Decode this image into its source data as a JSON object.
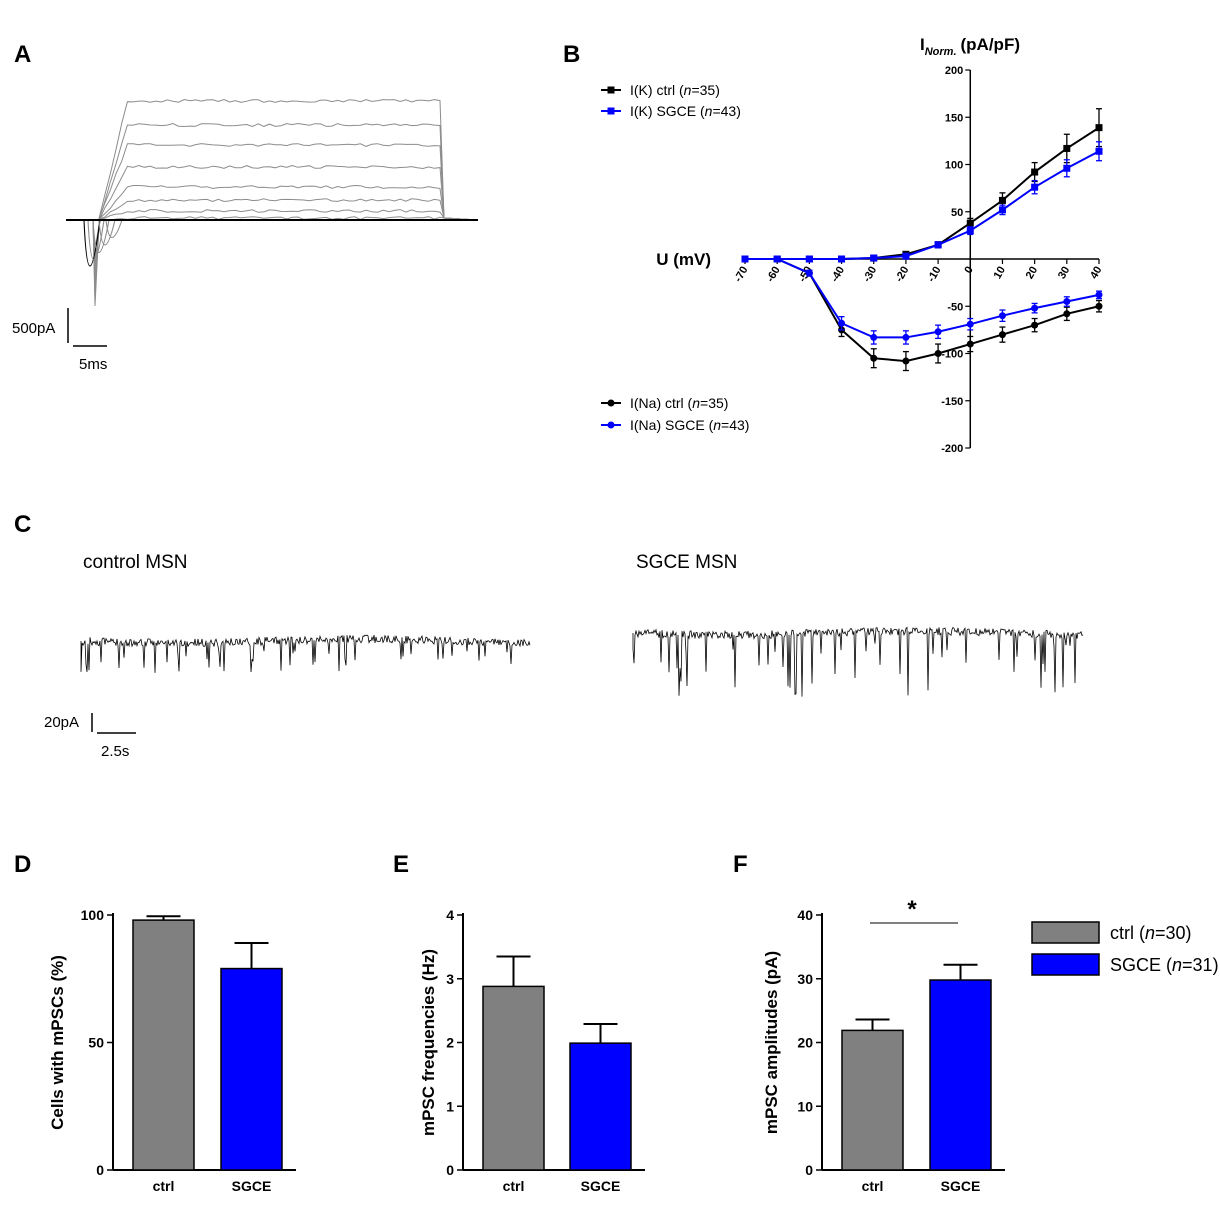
{
  "panels": {
    "a": {
      "letter": "A",
      "scale_current": "500pA",
      "scale_time": "5ms"
    },
    "b": {
      "letter": "B"
    },
    "c": {
      "letter": "C",
      "label_left": "control MSN",
      "label_right": "SGCE MSN",
      "scale_current": "20pA",
      "scale_time": "2.5s"
    },
    "d": {
      "letter": "D"
    },
    "e": {
      "letter": "E"
    },
    "f": {
      "letter": "F"
    }
  },
  "colors": {
    "ctrl_iv": "#000000",
    "sgce": "#0000ff",
    "ctrl_bar": "#808080",
    "trace_grey": "#8c8c8c"
  },
  "chart_data": [
    {
      "id": "B",
      "type": "line",
      "title": "",
      "ylabel_main": "I",
      "ylabel_sub": "Norm.",
      "ylabel_unit": "(pA/pF)",
      "xlabel": "U (mV)",
      "x": [
        -70,
        -60,
        -50,
        -40,
        -30,
        -20,
        -10,
        0,
        10,
        20,
        30,
        40
      ],
      "xlim": [
        -70,
        40
      ],
      "ylim": [
        -200,
        200
      ],
      "yticks": [
        -200,
        -150,
        -100,
        -50,
        50,
        100,
        150,
        200
      ],
      "series": [
        {
          "name": "I(K) ctrl",
          "n": "35",
          "marker": "square",
          "color": "#000000",
          "values": [
            0,
            0,
            0,
            0,
            1,
            5,
            15,
            38,
            62,
            92,
            117,
            139
          ],
          "errors": [
            0,
            0,
            0,
            0,
            1,
            2,
            3,
            5,
            8,
            10,
            15,
            20
          ]
        },
        {
          "name": "I(K) SGCE",
          "n": "43",
          "marker": "square",
          "color": "#0000ff",
          "values": [
            0,
            0,
            0,
            0,
            1,
            3,
            15,
            30,
            52,
            76,
            96,
            114
          ],
          "errors": [
            0,
            0,
            0,
            0,
            1,
            2,
            3,
            4,
            5,
            7,
            9,
            10
          ]
        },
        {
          "name": "I(Na) ctrl",
          "n": "35",
          "marker": "circle",
          "color": "#000000",
          "values": [
            0,
            0,
            -15,
            -75,
            -105,
            -108,
            -100,
            -90,
            -80,
            -70,
            -58,
            -50
          ],
          "errors": [
            0,
            0,
            3,
            7,
            10,
            10,
            10,
            8,
            8,
            7,
            7,
            6
          ]
        },
        {
          "name": "I(Na) SGCE",
          "n": "43",
          "marker": "circle",
          "color": "#0000ff",
          "values": [
            0,
            0,
            -15,
            -68,
            -83,
            -83,
            -77,
            -69,
            -60,
            -52,
            -45,
            -38
          ],
          "errors": [
            0,
            0,
            3,
            7,
            7,
            7,
            7,
            6,
            6,
            5,
            5,
            4
          ]
        }
      ]
    },
    {
      "id": "D",
      "type": "bar",
      "categories": [
        "ctrl",
        "SGCE"
      ],
      "values": [
        98,
        79
      ],
      "errors": [
        1.5,
        10
      ],
      "colors": [
        "#808080",
        "#0000ff"
      ],
      "ylabel": "Cells with mPSCs (%)",
      "ylim": [
        0,
        100
      ],
      "yticks": [
        0,
        50,
        100
      ]
    },
    {
      "id": "E",
      "type": "bar",
      "categories": [
        "ctrl",
        "SGCE"
      ],
      "values": [
        2.88,
        1.99
      ],
      "errors": [
        0.47,
        0.3
      ],
      "colors": [
        "#808080",
        "#0000ff"
      ],
      "ylabel": "mPSC frequencies (Hz)",
      "ylim": [
        0,
        4
      ],
      "yticks": [
        0,
        1,
        2,
        3,
        4
      ]
    },
    {
      "id": "F",
      "type": "bar",
      "categories": [
        "ctrl",
        "SGCE"
      ],
      "values": [
        21.9,
        29.8
      ],
      "errors": [
        1.7,
        2.4
      ],
      "colors": [
        "#808080",
        "#0000ff"
      ],
      "ylabel": "mPSC amplitudes (pA)",
      "ylim": [
        0,
        40
      ],
      "yticks": [
        0,
        10,
        20,
        30,
        40
      ],
      "significance": "*",
      "legend": [
        {
          "name": "ctrl",
          "n": "30",
          "color": "#808080"
        },
        {
          "name": "SGCE",
          "n": "31",
          "color": "#0000ff"
        }
      ]
    }
  ]
}
